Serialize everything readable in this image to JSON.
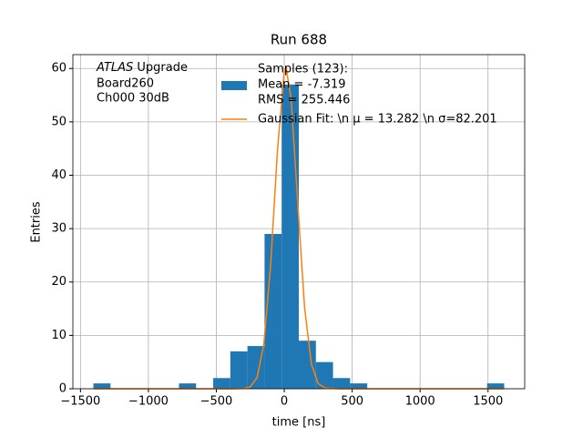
{
  "chart_data": {
    "type": "histogram",
    "title": "Run 688",
    "xlabel": "time [ns]",
    "ylabel": "Entries",
    "bins": [
      -1405,
      -1279,
      -1153,
      -1027,
      -901,
      -775,
      -649,
      -523,
      -397,
      -271,
      -145,
      -19,
      107,
      233,
      359,
      485,
      611,
      737,
      863,
      989,
      1115,
      1241,
      1367,
      1493,
      1619
    ],
    "counts": [
      1,
      0,
      0,
      0,
      0,
      1,
      0,
      2,
      7,
      8,
      29,
      57,
      9,
      5,
      2,
      1,
      0,
      0,
      0,
      0,
      0,
      0,
      0,
      1
    ],
    "color": "#1f77b4",
    "hist_legend": [
      "Samples (123):",
      " Mean = -7.319",
      " RMS = 255.446"
    ],
    "series": [
      {
        "name": "Gaussian Fit: \\n μ = 13.282 \\n σ=82.201",
        "color": "#ff7f0e",
        "x": [
          -1400,
          -400,
          -300,
          -250,
          -200,
          -150,
          -100,
          -50,
          0,
          13,
          50,
          100,
          150,
          200,
          250,
          300,
          400,
          1620
        ],
        "values": [
          0,
          0,
          0.04,
          0.35,
          2.1,
          8.4,
          23.3,
          44.7,
          59.4,
          60.2,
          54.5,
          34.5,
          15.1,
          4.6,
          0.95,
          0.14,
          0,
          0
        ]
      }
    ],
    "annotation": {
      "label": "ATLAS",
      "lines": [
        " Upgrade",
        " Board260",
        " Ch000 30dB"
      ]
    },
    "xlim": [
      -1556,
      1770
    ],
    "ylim": [
      0,
      62.6
    ],
    "xticks": [
      {
        "value": -1500,
        "label": "−1500"
      },
      {
        "value": -1000,
        "label": "−1000"
      },
      {
        "value": -500,
        "label": "−500"
      },
      0,
      500,
      1000,
      1500
    ],
    "yticks": [
      0,
      10,
      20,
      30,
      40,
      50,
      60
    ],
    "grid": true
  }
}
